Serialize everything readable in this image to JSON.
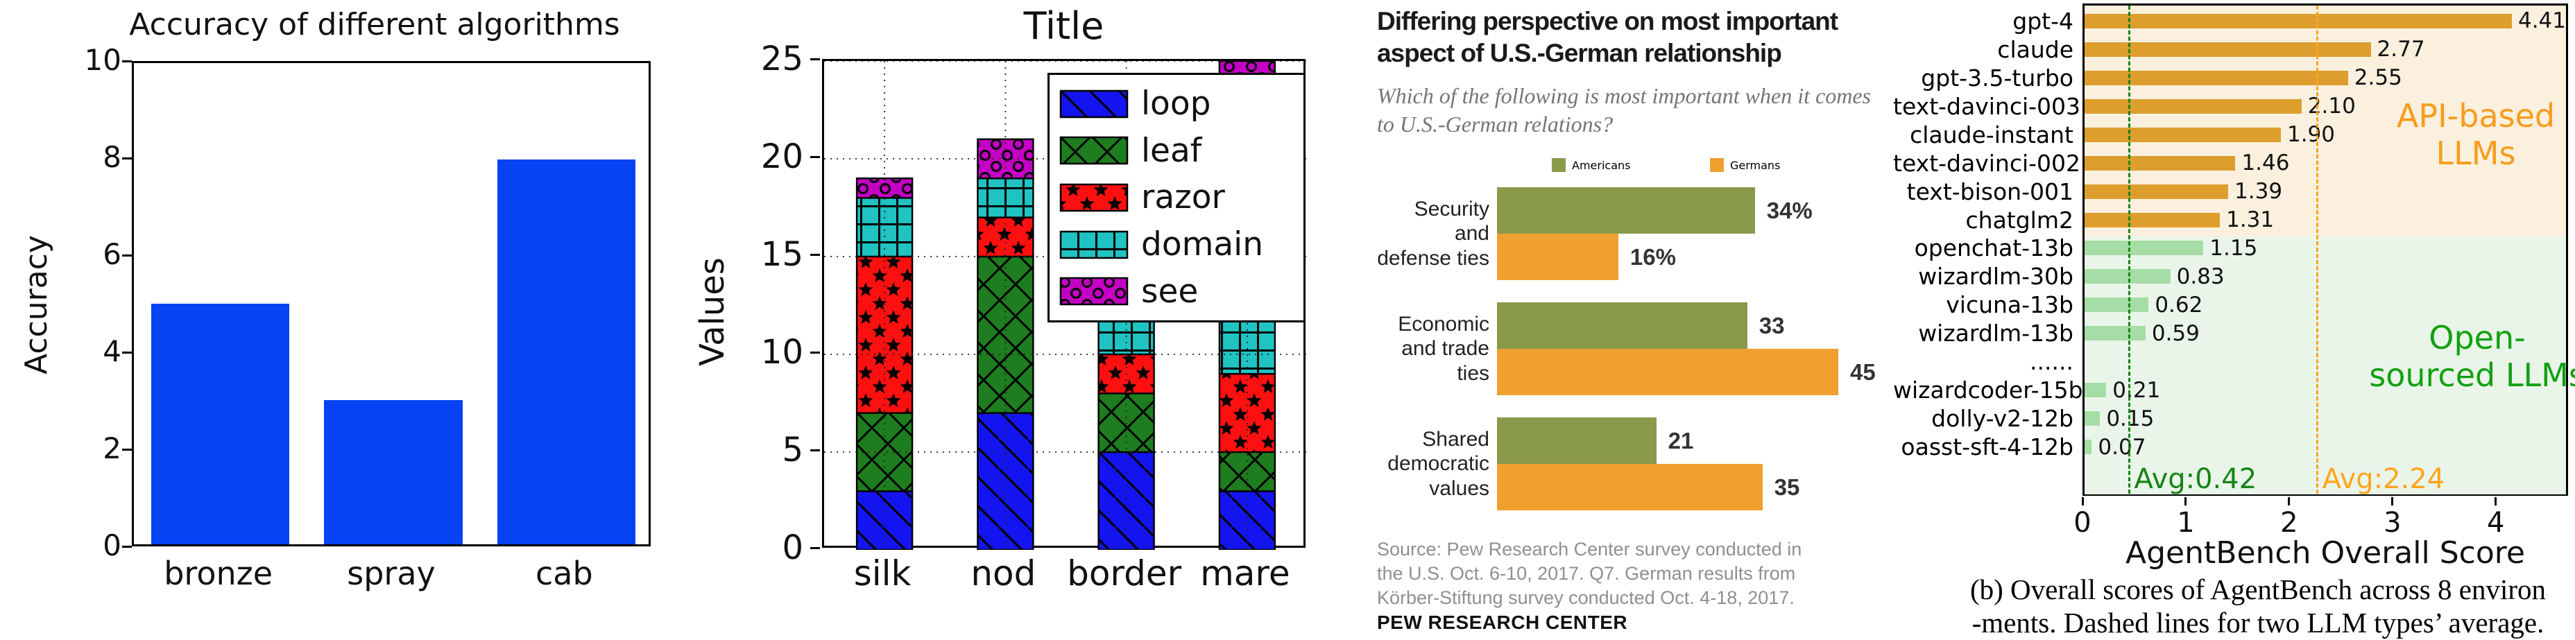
{
  "chart_data": [
    {
      "id": "accuracy-bar-chart",
      "type": "bar",
      "title": "Accuracy of different algorithms",
      "ylabel": "Accuracy",
      "categories": [
        "bronze",
        "spray",
        "cab"
      ],
      "values": [
        5,
        3,
        8
      ],
      "ylim": [
        0,
        10
      ],
      "yticks": [
        0,
        2,
        4,
        6,
        8,
        10
      ],
      "bar_color": "#0743f2",
      "grid": false
    },
    {
      "id": "stacked-hatched-bar-chart",
      "type": "bar",
      "stacked": true,
      "title": "Title",
      "ylabel": "Values",
      "categories": [
        "silk",
        "nod",
        "border",
        "mare"
      ],
      "series": [
        {
          "name": "loop",
          "color": "#1414f0",
          "hatch": "\\",
          "values": [
            3,
            7,
            5,
            3
          ]
        },
        {
          "name": "leaf",
          "color": "#1e7d1e",
          "hatch": "x",
          "values": [
            4,
            8,
            3,
            2
          ]
        },
        {
          "name": "razor",
          "color": "#ff1010",
          "hatch": "*",
          "values": [
            8,
            2,
            2,
            4
          ]
        },
        {
          "name": "domain",
          "color": "#20c2c2",
          "hatch": "+",
          "values": [
            3,
            2,
            4,
            15
          ]
        },
        {
          "name": "see",
          "color": "#c400c4",
          "hatch": "o",
          "values": [
            1,
            2,
            1,
            1
          ]
        }
      ],
      "ylim": [
        0,
        25
      ],
      "yticks": [
        0,
        5,
        10,
        15,
        20,
        25
      ],
      "grid": true,
      "legend_position": "upper right"
    },
    {
      "id": "pew-grouped-bar-chart",
      "type": "bar",
      "orientation": "horizontal",
      "title": "Differing perspective on most important aspect of U.S.-German relationship",
      "title_lines": [
        "Differing perspective on most important",
        "aspect of U.S.-German relationship"
      ],
      "subtitle_lines": [
        "Which of the following is most important when it comes",
        "to U.S.-German relations?"
      ],
      "categories": [
        "Security and defense ties",
        "Economic and trade ties",
        "Shared democratic values"
      ],
      "series": [
        {
          "name": "Americans",
          "color": "#8a9a4b",
          "values": [
            34,
            33,
            21
          ],
          "labels": [
            "34%",
            "33",
            "21"
          ]
        },
        {
          "name": "Germans",
          "color": "#efa02e",
          "values": [
            16,
            45,
            35
          ],
          "labels": [
            "16%",
            "45",
            "35"
          ]
        }
      ],
      "xmax": 45,
      "source": "Source: Pew Research Center survey conducted in the U.S. Oct. 6-10, 2017. Q7. German results from Körber-Stiftung survey conducted Oct. 4-18, 2017.",
      "footer": "PEW RESEARCH CENTER"
    },
    {
      "id": "agentbench-score-chart",
      "type": "bar",
      "orientation": "horizontal",
      "xlabel": "AgentBench Overall Score",
      "xticks": [
        0,
        1,
        2,
        3,
        4
      ],
      "xlim": [
        0,
        4.7
      ],
      "rows": [
        {
          "label": "gpt-4",
          "value": 4.41,
          "value_label": "4.41",
          "group": "api"
        },
        {
          "label": "claude",
          "value": 2.77,
          "value_label": "2.77",
          "group": "api"
        },
        {
          "label": "gpt-3.5-turbo",
          "value": 2.55,
          "value_label": "2.55",
          "group": "api"
        },
        {
          "label": "text-davinci-003",
          "value": 2.1,
          "value_label": "2.10",
          "group": "api"
        },
        {
          "label": "claude-instant",
          "value": 1.9,
          "value_label": "1.90",
          "group": "api"
        },
        {
          "label": "text-davinci-002",
          "value": 1.46,
          "value_label": "1.46",
          "group": "api"
        },
        {
          "label": "text-bison-001",
          "value": 1.39,
          "value_label": "1.39",
          "group": "api"
        },
        {
          "label": "chatglm2",
          "value": 1.31,
          "value_label": "1.31",
          "group": "api"
        },
        {
          "label": "openchat-13b",
          "value": 1.15,
          "value_label": "1.15",
          "group": "open"
        },
        {
          "label": "wizardlm-30b",
          "value": 0.83,
          "value_label": "0.83",
          "group": "open"
        },
        {
          "label": "vicuna-13b",
          "value": 0.62,
          "value_label": "0.62",
          "group": "open"
        },
        {
          "label": "wizardlm-13b",
          "value": 0.59,
          "value_label": "0.59",
          "group": "open"
        },
        {
          "label": "......",
          "value": null,
          "value_label": "",
          "group": "open"
        },
        {
          "label": "wizardcoder-15b",
          "value": 0.21,
          "value_label": "0.21",
          "group": "open"
        },
        {
          "label": "dolly-v2-12b",
          "value": 0.15,
          "value_label": "0.15",
          "group": "open"
        },
        {
          "label": "oasst-sft-4-12b",
          "value": 0.07,
          "value_label": "0.07",
          "group": "open"
        }
      ],
      "groups": {
        "api": {
          "bar_color": "#dd9e2d",
          "bg_color": "#faf0dd",
          "label": "API-based LLMs",
          "label_color": "#f79c1c"
        },
        "open": {
          "bar_color": "#a6dda6",
          "bg_color": "#eaf5e9",
          "label": "Open-sourced LLMs",
          "label_color": "#12a012"
        }
      },
      "avg_lines": [
        {
          "label": "Avg:0.42",
          "value": 0.42,
          "color": "#168416",
          "style": "dashdot"
        },
        {
          "label": "Avg:2.24",
          "value": 2.24,
          "color": "#ffa41c",
          "style": "dashed"
        }
      ],
      "caption_lines": [
        "(b) Overall scores of AgentBench across 8 environ",
        "-ments. Dashed lines for two LLM types’ average."
      ]
    }
  ]
}
